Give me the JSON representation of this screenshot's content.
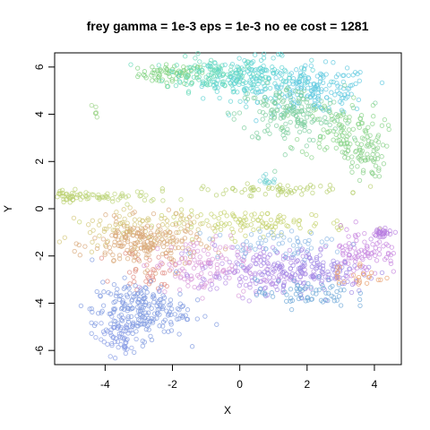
{
  "chart_data": {
    "type": "scatter",
    "title": "frey gamma = 1e-3 eps = 1e-3 no ee cost = 1281",
    "xlabel": "X",
    "ylabel": "Y",
    "xlim": [
      -5.5,
      4.8
    ],
    "ylim": [
      -6.6,
      6.6
    ],
    "x_ticks": [
      -4,
      -2,
      0,
      2,
      4
    ],
    "y_ticks": [
      -6,
      -4,
      -2,
      0,
      2,
      4,
      6
    ],
    "x_tick_labels": [
      "-4",
      "-2",
      "0",
      "2",
      "4"
    ],
    "y_tick_labels": [
      "-6",
      "-4",
      "-2",
      "0",
      "2",
      "4",
      "6"
    ],
    "grid": false,
    "legend": "none",
    "marker": "open-circle",
    "clusters": [
      {
        "color": "#7fd27f",
        "center": [
          -2.0,
          5.7
        ],
        "spread": [
          0.5,
          0.2
        ],
        "n": 70
      },
      {
        "color": "#66d9b8",
        "center": [
          -0.8,
          5.7
        ],
        "spread": [
          0.7,
          0.35
        ],
        "n": 120
      },
      {
        "color": "#5fd3d3",
        "center": [
          0.5,
          5.5
        ],
        "spread": [
          0.8,
          0.45
        ],
        "n": 160
      },
      {
        "color": "#62c9e0",
        "center": [
          2.3,
          5.0
        ],
        "spread": [
          0.8,
          0.5
        ],
        "n": 160
      },
      {
        "color": "#7fcfa0",
        "center": [
          1.5,
          4.0
        ],
        "spread": [
          0.8,
          0.6
        ],
        "n": 170
      },
      {
        "color": "#8ad48a",
        "center": [
          3.0,
          3.3
        ],
        "spread": [
          0.6,
          0.6
        ],
        "n": 100
      },
      {
        "color": "#8ad08a",
        "center": [
          3.7,
          2.2
        ],
        "spread": [
          0.3,
          0.45
        ],
        "n": 60
      },
      {
        "color": "#9ed48a",
        "center": [
          -4.3,
          4.1
        ],
        "spread": [
          0.05,
          0.2
        ],
        "n": 6
      },
      {
        "color": "#b9cf6e",
        "center": [
          -5.1,
          0.5
        ],
        "spread": [
          0.25,
          0.15
        ],
        "n": 30
      },
      {
        "color": "#bcd47a",
        "center": [
          -3.8,
          0.5
        ],
        "spread": [
          0.9,
          0.12
        ],
        "n": 50
      },
      {
        "color": "#b8d070",
        "center": [
          1.0,
          0.8
        ],
        "spread": [
          1.1,
          0.12
        ],
        "n": 60
      },
      {
        "color": "#c6d36f",
        "center": [
          0.5,
          -0.6
        ],
        "spread": [
          1.4,
          0.25
        ],
        "n": 110
      },
      {
        "color": "#d4c77a",
        "center": [
          -3.0,
          -0.8
        ],
        "spread": [
          1.1,
          0.35
        ],
        "n": 90
      },
      {
        "color": "#d9a87a",
        "center": [
          -2.8,
          -1.5
        ],
        "spread": [
          0.8,
          0.5
        ],
        "n": 200
      },
      {
        "color": "#e08a80",
        "center": [
          -2.6,
          -2.6
        ],
        "spread": [
          0.5,
          0.4
        ],
        "n": 40
      },
      {
        "color": "#d99ad9",
        "center": [
          -1.2,
          -2.4
        ],
        "spread": [
          0.7,
          0.6
        ],
        "n": 110
      },
      {
        "color": "#b58ee6",
        "center": [
          0.6,
          -2.7
        ],
        "spread": [
          0.9,
          0.5
        ],
        "n": 150
      },
      {
        "color": "#a08ae6",
        "center": [
          2.3,
          -2.6
        ],
        "spread": [
          0.9,
          0.5
        ],
        "n": 140
      },
      {
        "color": "#c888e0",
        "center": [
          3.7,
          -1.8
        ],
        "spread": [
          0.5,
          0.5
        ],
        "n": 90
      },
      {
        "color": "#b87fe0",
        "center": [
          4.2,
          -1.0
        ],
        "spread": [
          0.2,
          0.12
        ],
        "n": 30
      },
      {
        "color": "#8cb8e6",
        "center": [
          1.0,
          -1.5
        ],
        "spread": [
          0.9,
          0.3
        ],
        "n": 60
      },
      {
        "color": "#7f9ae0",
        "center": [
          -3.0,
          -4.3
        ],
        "spread": [
          0.7,
          0.6
        ],
        "n": 220
      },
      {
        "color": "#8a9ee6",
        "center": [
          -3.6,
          -5.4
        ],
        "spread": [
          0.3,
          0.4
        ],
        "n": 60
      },
      {
        "color": "#6fa8d8",
        "center": [
          1.9,
          -3.6
        ],
        "spread": [
          0.7,
          0.3
        ],
        "n": 70
      },
      {
        "color": "#e8a070",
        "center": [
          3.5,
          -2.8
        ],
        "spread": [
          0.4,
          0.3
        ],
        "n": 25
      },
      {
        "color": "#7fd6d6",
        "center": [
          0.8,
          1.2
        ],
        "spread": [
          0.15,
          0.12
        ],
        "n": 15
      }
    ]
  }
}
